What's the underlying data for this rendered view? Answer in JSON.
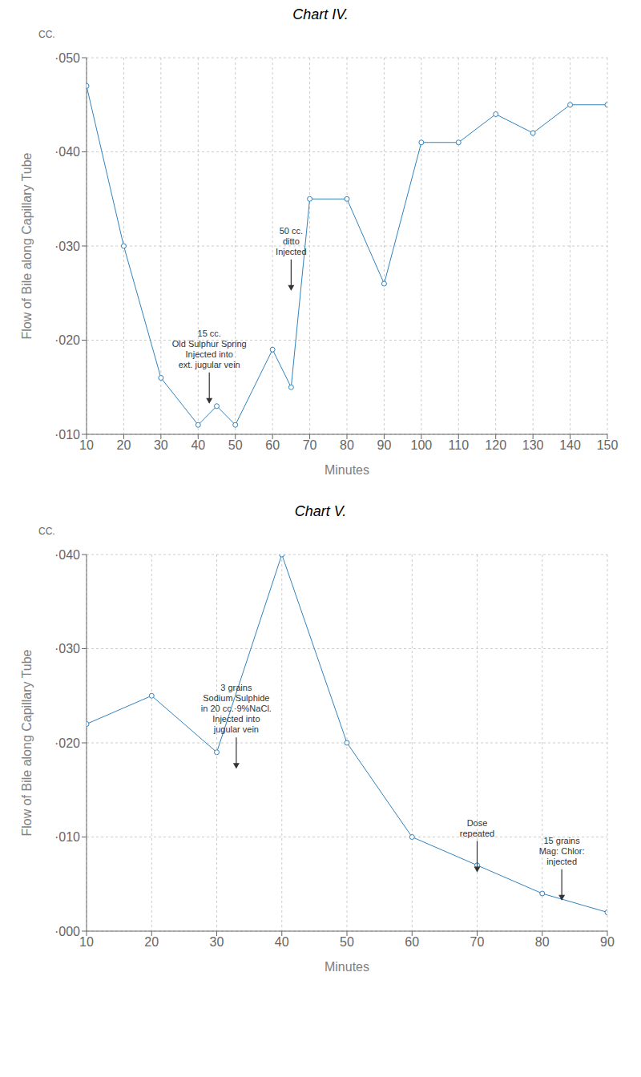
{
  "chart_data": [
    {
      "type": "line",
      "title": "Chart IV.",
      "xlabel": "Minutes",
      "ylabel": "Flow of Bile along Capillary Tube",
      "y_unit": "CC.",
      "x": [
        10,
        20,
        30,
        40,
        45,
        50,
        60,
        65,
        70,
        80,
        90,
        100,
        110,
        120,
        130,
        140,
        150
      ],
      "values": [
        0.047,
        0.03,
        0.016,
        0.011,
        0.013,
        0.011,
        0.019,
        0.015,
        0.035,
        0.035,
        0.026,
        0.041,
        0.041,
        0.044,
        0.042,
        0.045,
        0.045
      ],
      "xlim": [
        10,
        150
      ],
      "ylim": [
        0.01,
        0.05
      ],
      "xticks": [
        10,
        20,
        30,
        40,
        50,
        60,
        70,
        80,
        90,
        100,
        110,
        120,
        130,
        140,
        150
      ],
      "yticks": [
        {
          "value": 0.01,
          "label": "·010"
        },
        {
          "value": 0.02,
          "label": "·020"
        },
        {
          "value": 0.03,
          "label": "·030"
        },
        {
          "value": 0.04,
          "label": "·040"
        },
        {
          "value": 0.05,
          "label": "·050"
        }
      ],
      "grid": true,
      "marker": "o",
      "annotations": [
        {
          "text": [
            "15 cc.",
            "Old Sulphur Spring",
            "Injected into",
            "ext. jugular vein"
          ],
          "x": 43,
          "y": 0.013
        },
        {
          "text": [
            "50 cc.",
            "ditto",
            "Injected"
          ],
          "x": 65,
          "y": 0.025
        }
      ]
    },
    {
      "type": "line",
      "title": "Chart V.",
      "xlabel": "Minutes",
      "ylabel": "Flow of Bile along Capillary Tube",
      "y_unit": "CC.",
      "x": [
        10,
        20,
        30,
        40,
        50,
        60,
        70,
        80,
        90
      ],
      "values": [
        0.022,
        0.025,
        0.019,
        0.04,
        0.02,
        0.01,
        0.007,
        0.004,
        0.002
      ],
      "xlim": [
        10,
        90
      ],
      "ylim": [
        0.0,
        0.04
      ],
      "xticks": [
        10,
        20,
        30,
        40,
        50,
        60,
        70,
        80,
        90
      ],
      "yticks": [
        {
          "value": 0.0,
          "label": "·000"
        },
        {
          "value": 0.01,
          "label": "·010"
        },
        {
          "value": 0.02,
          "label": "·020"
        },
        {
          "value": 0.03,
          "label": "·030"
        },
        {
          "value": 0.04,
          "label": "·040"
        }
      ],
      "grid": true,
      "marker": "o",
      "annotations": [
        {
          "text": [
            "3 grains",
            "Sodium Sulphide",
            "in 20 cc.·9%NaCl.",
            "Injected into",
            "jugular vein"
          ],
          "x": 33,
          "y": 0.017
        },
        {
          "text": [
            "Dose",
            "repeated"
          ],
          "x": 70,
          "y": 0.006
        },
        {
          "text": [
            "15 grains",
            "Mag: Chlor:",
            "injected"
          ],
          "x": 83,
          "y": 0.003
        }
      ]
    }
  ]
}
